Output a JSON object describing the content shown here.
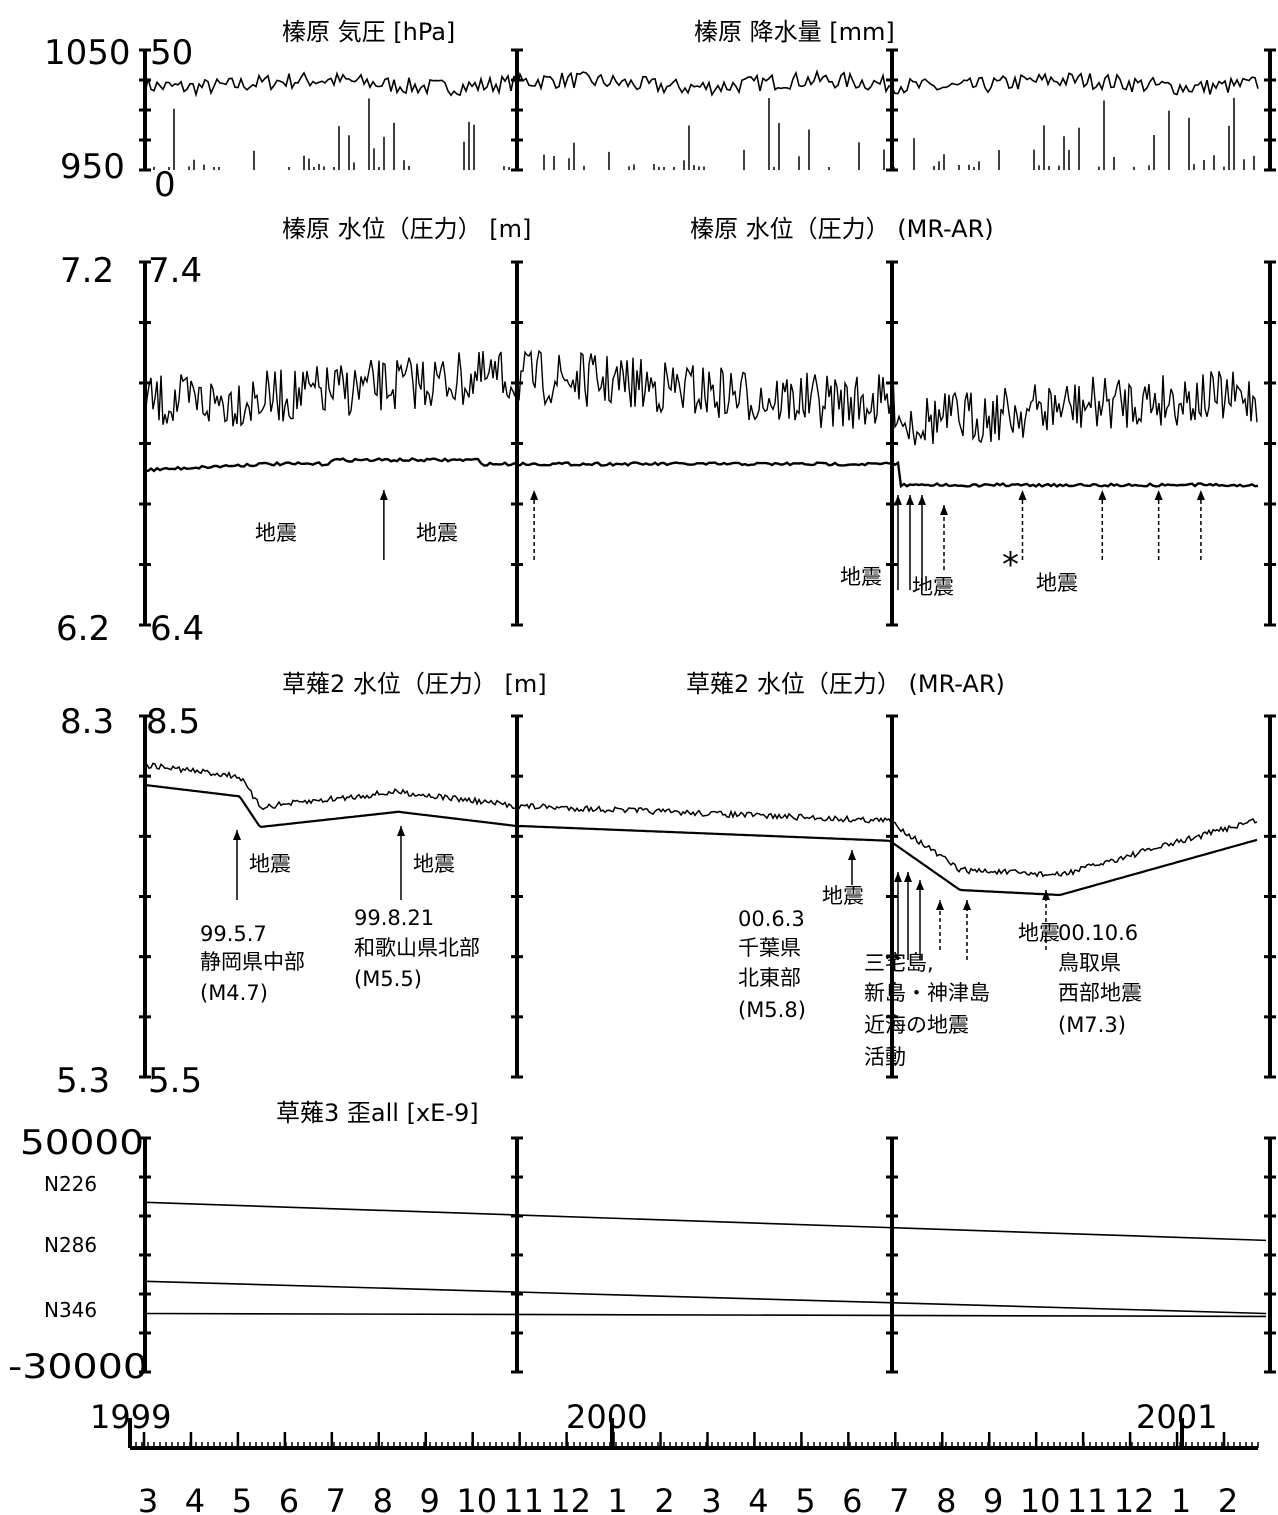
{
  "chart_data": {
    "type": "line",
    "x_axis": {
      "years": [
        "1999",
        "2000",
        "2001"
      ],
      "months": [
        "3",
        "4",
        "5",
        "6",
        "7",
        "8",
        "9",
        "10",
        "11",
        "12",
        "1",
        "2",
        "3",
        "4",
        "5",
        "6",
        "7",
        "8",
        "9",
        "10",
        "11",
        "12",
        "1",
        "2"
      ]
    },
    "panels": [
      {
        "id": "p1",
        "titles": [
          "榛原 気圧 [hPa]",
          "榛原 降水量 [mm]"
        ],
        "ylabels_outer": [
          "1050",
          "950"
        ],
        "ylabels_inner": [
          "50",
          "0"
        ],
        "series": [
          {
            "name": "榛原 気圧",
            "unit": "hPa",
            "level": 1022,
            "range": [
              950,
              1050
            ]
          },
          {
            "name": "榛原 降水量",
            "unit": "mm",
            "range": [
              0,
              50
            ]
          }
        ]
      },
      {
        "id": "p2",
        "titles": [
          "榛原 水位（圧力） [m]",
          "榛原 水位（圧力） (MR-AR)"
        ],
        "ylabels_outer": [
          "7.2",
          "6.2"
        ],
        "ylabels_inner": [
          "7.4",
          "6.4"
        ],
        "series": [
          {
            "name": "榛原 水位（圧力）",
            "unit": "m",
            "range": [
              6.4,
              7.4
            ]
          },
          {
            "name": "榛原 水位（圧力） (MR-AR)",
            "range": [
              6.2,
              7.2
            ]
          }
        ],
        "annotations": [
          {
            "text": "地震",
            "x": 5.3
          },
          {
            "text": "地震",
            "x": 8.5
          },
          {
            "text": "地震",
            "x": 18.9
          },
          {
            "text": "地震",
            "x": 20.6
          },
          {
            "text": "*",
            "x": 21.8
          },
          {
            "text": "地震",
            "x": 22.7
          }
        ]
      },
      {
        "id": "p3",
        "titles": [
          "草薙2 水位（圧力） [m]",
          "草薙2 水位（圧力） (MR-AR)"
        ],
        "ylabels_outer": [
          "8.3",
          "5.3"
        ],
        "ylabels_inner": [
          "8.5",
          "5.5"
        ],
        "series": [
          {
            "name": "草薙2 水位（圧力）",
            "unit": "m",
            "range": [
              5.5,
              8.5
            ]
          },
          {
            "name": "草薙2 水位（圧力） (MR-AR)",
            "range": [
              5.3,
              8.3
            ]
          }
        ],
        "annotations": [
          {
            "date": "99.5.7",
            "place": "静岡県中部",
            "mag": "(M4.7)",
            "label": "地震"
          },
          {
            "date": "99.8.21",
            "place": "和歌山県北部",
            "mag": "(M5.5)",
            "label": "地震"
          },
          {
            "date": "00.6.3",
            "place": "千葉県",
            "place2": "北東部",
            "mag": "(M5.8)",
            "label": "地震"
          },
          {
            "place": "三宅島,",
            "place2": "新島・神津島",
            "place3": "近海の地震",
            "place4": "活動"
          },
          {
            "date": "00.10.6",
            "place": "鳥取県",
            "place2": "西部地震",
            "mag": "(M7.3)",
            "label": "地震"
          }
        ]
      },
      {
        "id": "p4",
        "titles": [
          "草薙3 歪all [xE-9]"
        ],
        "ylabels_outer": [
          "50000",
          "-30000"
        ],
        "ylabels_inner": [
          "N226",
          "N286",
          "N346"
        ],
        "series": [
          {
            "name": "N226",
            "start": 28000,
            "end": 15000
          },
          {
            "name": "N286",
            "start": 1000,
            "end": -10000
          },
          {
            "name": "N346",
            "start": -10000,
            "end": -11000
          }
        ]
      }
    ]
  }
}
